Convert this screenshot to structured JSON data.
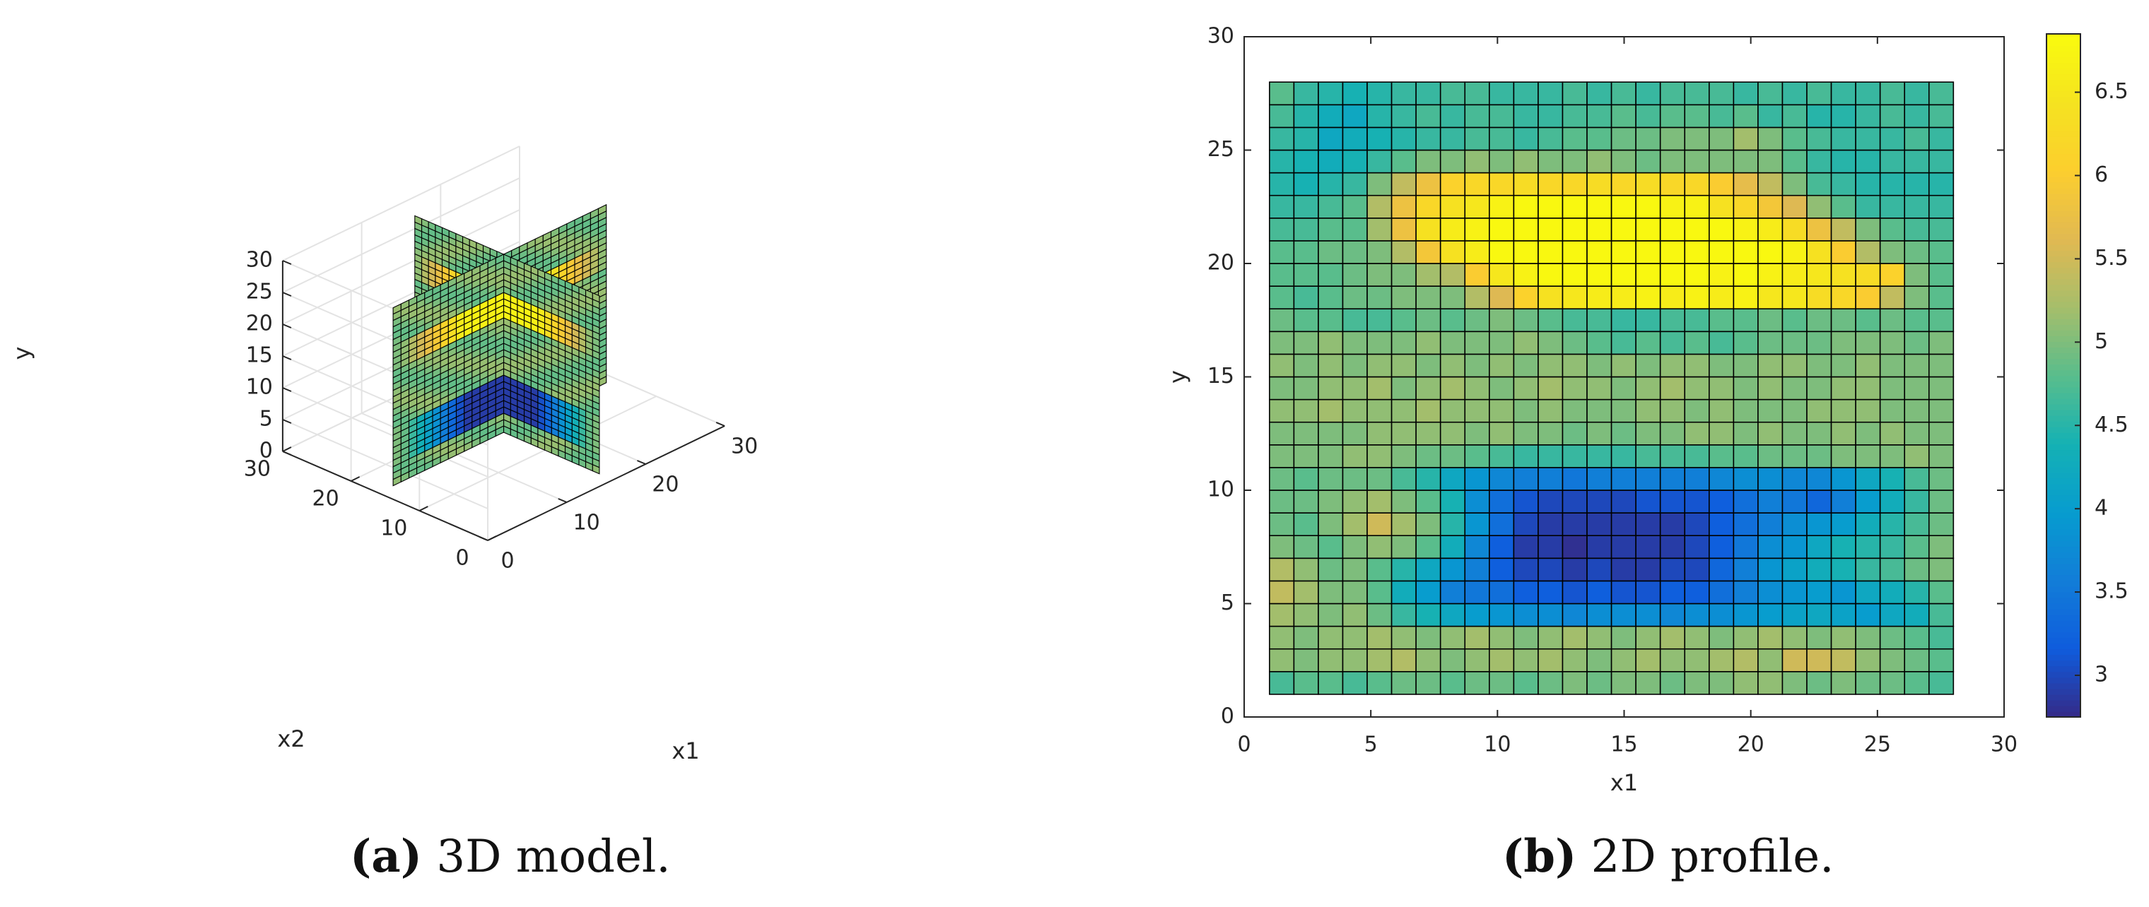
{
  "chart_data": [
    {
      "type": "3d-slices",
      "xlabel": "x1",
      "zlabel": "x2",
      "ylabel": "y",
      "x_ticks": [
        0,
        10,
        20,
        30
      ],
      "z_ticks": [
        0,
        10,
        20,
        30
      ],
      "y_ticks": [
        0,
        5,
        10,
        15,
        20,
        25,
        30
      ],
      "xlim": [
        0,
        30
      ],
      "zlim": [
        0,
        30
      ],
      "ylim": [
        0,
        30
      ],
      "grid": true,
      "slices": [
        "x1 = 15 plane",
        "x2 = 15 plane"
      ],
      "model": {
        "background": 5.0,
        "upper_anomaly": {
          "y_range": [
            19,
            23
          ],
          "value": 6.7
        },
        "lower_anomaly": {
          "y_range": [
            4,
            10
          ],
          "value": 2.9
        }
      },
      "caption_label": "(a)",
      "caption_text": "3D model."
    },
    {
      "type": "heatmap",
      "xlabel": "x1",
      "ylabel": "y",
      "xlim": [
        0,
        30
      ],
      "ylim": [
        0,
        30
      ],
      "x_ticks": [
        0,
        5,
        10,
        15,
        20,
        25,
        30
      ],
      "y_ticks": [
        0,
        5,
        10,
        15,
        20,
        25,
        30
      ],
      "cell_extent": {
        "x1": [
          1,
          28
        ],
        "y": [
          1,
          28
        ]
      },
      "colorbar_ticks": [
        "3",
        "3.5",
        "4",
        "4.5",
        "5",
        "5.5",
        "6",
        "6.5"
      ],
      "colorbar_range": [
        2.75,
        6.85
      ],
      "values": [
        [
          4.7,
          4.8,
          4.8,
          4.7,
          4.8,
          4.9,
          4.9,
          4.8,
          4.9,
          4.9,
          4.8,
          4.9,
          5.0,
          4.9,
          5.0,
          5.0,
          4.9,
          5.0,
          5.0,
          5.1,
          5.1,
          5.0,
          4.9,
          5.0,
          4.9,
          4.9,
          4.8,
          4.7
        ],
        [
          5.1,
          5.0,
          5.1,
          5.1,
          5.2,
          5.3,
          5.1,
          5.0,
          5.1,
          5.2,
          5.1,
          5.2,
          5.1,
          5.0,
          5.1,
          5.2,
          5.1,
          5.1,
          5.2,
          5.3,
          5.1,
          5.5,
          5.5,
          5.4,
          5.1,
          5.0,
          4.9,
          4.8
        ],
        [
          5.1,
          5.0,
          5.1,
          5.1,
          5.2,
          5.1,
          5.0,
          5.1,
          5.2,
          5.1,
          5.0,
          5.1,
          5.2,
          5.1,
          5.0,
          5.1,
          5.2,
          5.1,
          5.0,
          5.1,
          5.2,
          5.1,
          5.0,
          5.1,
          5.0,
          4.9,
          4.8,
          4.7
        ],
        [
          5.2,
          5.1,
          5.0,
          5.1,
          4.9,
          4.6,
          4.4,
          4.2,
          4.0,
          3.9,
          3.8,
          3.8,
          3.7,
          3.8,
          3.8,
          3.8,
          3.7,
          3.8,
          3.8,
          3.9,
          4.0,
          4.1,
          4.2,
          4.1,
          4.0,
          4.2,
          4.3,
          4.7
        ],
        [
          5.4,
          5.2,
          5.0,
          5.0,
          4.8,
          4.3,
          4.0,
          3.6,
          3.5,
          3.4,
          3.2,
          3.2,
          3.1,
          3.2,
          3.1,
          3.1,
          3.2,
          3.2,
          3.4,
          3.6,
          3.8,
          3.9,
          4.0,
          3.9,
          4.2,
          4.3,
          4.5,
          4.8
        ],
        [
          5.3,
          5.1,
          4.9,
          5.0,
          4.8,
          4.5,
          4.2,
          3.9,
          3.6,
          3.2,
          3.0,
          3.0,
          2.9,
          3.0,
          2.9,
          2.9,
          3.0,
          3.0,
          3.3,
          3.6,
          3.9,
          4.1,
          4.3,
          4.4,
          4.6,
          4.7,
          4.9,
          5.0
        ],
        [
          5.0,
          4.9,
          4.8,
          5.0,
          5.1,
          5.0,
          4.8,
          4.3,
          3.7,
          3.2,
          2.9,
          2.9,
          2.8,
          2.9,
          2.9,
          2.9,
          2.9,
          3.0,
          3.2,
          3.5,
          3.8,
          3.9,
          4.2,
          4.4,
          4.5,
          4.6,
          4.8,
          5.0
        ],
        [
          4.9,
          4.8,
          5.0,
          5.2,
          5.5,
          5.2,
          5.0,
          4.5,
          3.9,
          3.4,
          3.0,
          2.9,
          2.9,
          2.9,
          2.9,
          2.9,
          2.9,
          3.0,
          3.2,
          3.4,
          3.6,
          3.8,
          3.9,
          4.0,
          4.3,
          4.5,
          4.7,
          4.9
        ],
        [
          4.9,
          4.9,
          5.0,
          5.1,
          5.2,
          5.0,
          4.8,
          4.4,
          3.8,
          3.4,
          3.1,
          3.0,
          3.0,
          3.0,
          3.0,
          3.1,
          3.1,
          3.1,
          3.2,
          3.4,
          3.6,
          3.5,
          3.3,
          3.6,
          4.0,
          4.3,
          4.6,
          4.9
        ],
        [
          4.9,
          4.8,
          4.9,
          4.9,
          4.9,
          4.7,
          4.5,
          4.2,
          3.9,
          3.7,
          3.6,
          3.6,
          3.5,
          3.6,
          3.6,
          3.6,
          3.6,
          3.6,
          3.7,
          3.8,
          3.8,
          3.7,
          3.7,
          3.9,
          4.2,
          4.4,
          4.7,
          4.9
        ],
        [
          5.0,
          5.0,
          5.0,
          5.1,
          5.1,
          5.0,
          4.9,
          4.9,
          4.8,
          4.7,
          4.6,
          4.6,
          4.6,
          4.6,
          4.6,
          4.7,
          4.7,
          4.7,
          4.8,
          4.8,
          4.9,
          4.9,
          4.9,
          5.0,
          5.0,
          5.0,
          5.1,
          5.0
        ],
        [
          5.0,
          5.0,
          5.0,
          5.0,
          5.1,
          5.1,
          5.1,
          5.1,
          5.0,
          5.1,
          5.0,
          5.0,
          4.9,
          5.0,
          4.9,
          5.0,
          5.0,
          5.1,
          5.1,
          5.0,
          5.1,
          5.0,
          5.0,
          5.1,
          5.0,
          5.1,
          5.0,
          5.0
        ],
        [
          5.1,
          5.1,
          5.2,
          5.1,
          5.1,
          5.1,
          5.2,
          5.1,
          5.1,
          5.1,
          5.0,
          5.1,
          5.0,
          5.0,
          5.0,
          5.1,
          5.1,
          5.0,
          5.1,
          5.0,
          5.0,
          5.0,
          5.1,
          5.1,
          5.1,
          5.0,
          5.0,
          5.0
        ],
        [
          5.0,
          5.0,
          5.1,
          5.1,
          5.2,
          5.0,
          5.1,
          5.2,
          5.1,
          5.0,
          5.1,
          5.2,
          5.1,
          5.1,
          5.0,
          5.1,
          5.2,
          5.1,
          5.1,
          5.0,
          5.1,
          5.0,
          5.0,
          5.1,
          5.1,
          5.0,
          5.0,
          5.0
        ],
        [
          5.1,
          5.0,
          5.1,
          5.0,
          5.1,
          5.1,
          5.0,
          5.1,
          5.0,
          5.1,
          5.0,
          5.1,
          5.1,
          5.0,
          5.1,
          5.0,
          5.1,
          5.1,
          5.0,
          5.0,
          5.1,
          5.1,
          5.0,
          5.0,
          5.1,
          5.0,
          5.0,
          5.0
        ],
        [
          5.0,
          5.0,
          5.1,
          5.0,
          5.0,
          5.0,
          5.1,
          5.0,
          5.0,
          5.0,
          5.1,
          5.0,
          4.9,
          4.8,
          4.7,
          4.8,
          4.7,
          4.8,
          4.7,
          4.8,
          4.9,
          4.9,
          4.9,
          5.0,
          5.0,
          5.0,
          4.9,
          5.0
        ],
        [
          4.9,
          4.8,
          4.8,
          4.7,
          4.7,
          4.8,
          4.9,
          4.8,
          4.9,
          5.0,
          4.9,
          4.8,
          4.7,
          4.7,
          4.6,
          4.6,
          4.7,
          4.7,
          4.8,
          4.8,
          4.9,
          4.8,
          4.9,
          4.9,
          4.8,
          4.9,
          4.8,
          4.8
        ],
        [
          4.8,
          4.7,
          4.8,
          4.9,
          4.9,
          5.0,
          5.0,
          5.0,
          5.3,
          5.6,
          6.1,
          6.4,
          6.5,
          6.6,
          6.6,
          6.7,
          6.6,
          6.7,
          6.6,
          6.7,
          6.5,
          6.5,
          6.3,
          6.2,
          6.0,
          5.4,
          5.0,
          4.8
        ],
        [
          4.8,
          4.8,
          4.8,
          4.9,
          5.0,
          5.0,
          5.2,
          5.3,
          6.0,
          6.5,
          6.7,
          6.8,
          6.8,
          6.8,
          6.8,
          6.8,
          6.8,
          6.8,
          6.7,
          6.8,
          6.7,
          6.6,
          6.5,
          6.4,
          6.3,
          6.1,
          5.0,
          4.8
        ],
        [
          4.8,
          4.8,
          4.9,
          4.9,
          5.0,
          5.3,
          5.9,
          6.4,
          6.6,
          6.8,
          6.8,
          6.8,
          6.8,
          6.8,
          6.8,
          6.8,
          6.8,
          6.8,
          6.8,
          6.8,
          6.8,
          6.7,
          6.4,
          6.0,
          5.3,
          5.0,
          4.9,
          4.8
        ],
        [
          4.7,
          4.7,
          4.8,
          4.8,
          5.2,
          5.8,
          6.4,
          6.6,
          6.7,
          6.8,
          6.8,
          6.8,
          6.8,
          6.8,
          6.8,
          6.8,
          6.8,
          6.8,
          6.8,
          6.7,
          6.6,
          6.3,
          5.8,
          5.4,
          5.0,
          4.8,
          4.7,
          4.7
        ],
        [
          4.6,
          4.6,
          4.7,
          4.8,
          5.3,
          5.8,
          6.2,
          6.4,
          6.5,
          6.7,
          6.8,
          6.8,
          6.8,
          6.8,
          6.8,
          6.8,
          6.7,
          6.7,
          6.4,
          6.2,
          5.9,
          5.6,
          5.1,
          4.8,
          4.6,
          4.6,
          4.6,
          4.6
        ],
        [
          4.5,
          4.4,
          4.5,
          4.6,
          5.0,
          5.4,
          5.8,
          6.1,
          6.2,
          6.2,
          6.3,
          6.2,
          6.2,
          6.3,
          6.2,
          6.3,
          6.2,
          6.2,
          6.0,
          5.7,
          5.4,
          5.0,
          4.7,
          4.6,
          4.5,
          4.5,
          4.5,
          4.5
        ],
        [
          4.5,
          4.4,
          4.3,
          4.4,
          4.6,
          4.8,
          5.0,
          5.0,
          5.1,
          5.0,
          5.1,
          5.0,
          5.0,
          5.1,
          5.0,
          4.9,
          5.0,
          5.0,
          5.0,
          5.0,
          5.0,
          4.8,
          4.6,
          4.5,
          4.5,
          4.6,
          4.6,
          4.6
        ],
        [
          4.6,
          4.5,
          4.2,
          4.3,
          4.4,
          4.5,
          4.6,
          4.6,
          4.7,
          4.7,
          4.6,
          4.7,
          4.8,
          4.8,
          4.9,
          4.9,
          5.0,
          5.0,
          5.0,
          5.2,
          5.0,
          4.8,
          4.7,
          4.6,
          4.6,
          4.6,
          4.7,
          4.6
        ],
        [
          4.7,
          4.5,
          4.3,
          4.2,
          4.5,
          4.6,
          4.7,
          4.6,
          4.7,
          4.7,
          4.6,
          4.6,
          4.7,
          4.7,
          4.8,
          4.7,
          4.8,
          4.8,
          4.7,
          4.8,
          4.6,
          4.7,
          4.5,
          4.5,
          4.6,
          4.7,
          4.6,
          4.7
        ],
        [
          4.8,
          4.6,
          4.5,
          4.4,
          4.5,
          4.6,
          4.6,
          4.7,
          4.7,
          4.6,
          4.6,
          4.6,
          4.7,
          4.6,
          4.7,
          4.6,
          4.7,
          4.7,
          4.7,
          4.6,
          4.7,
          4.6,
          4.7,
          4.6,
          4.6,
          4.7,
          4.6,
          4.7
        ]
      ],
      "caption_label": "(b)",
      "caption_text": "2D profile."
    }
  ]
}
